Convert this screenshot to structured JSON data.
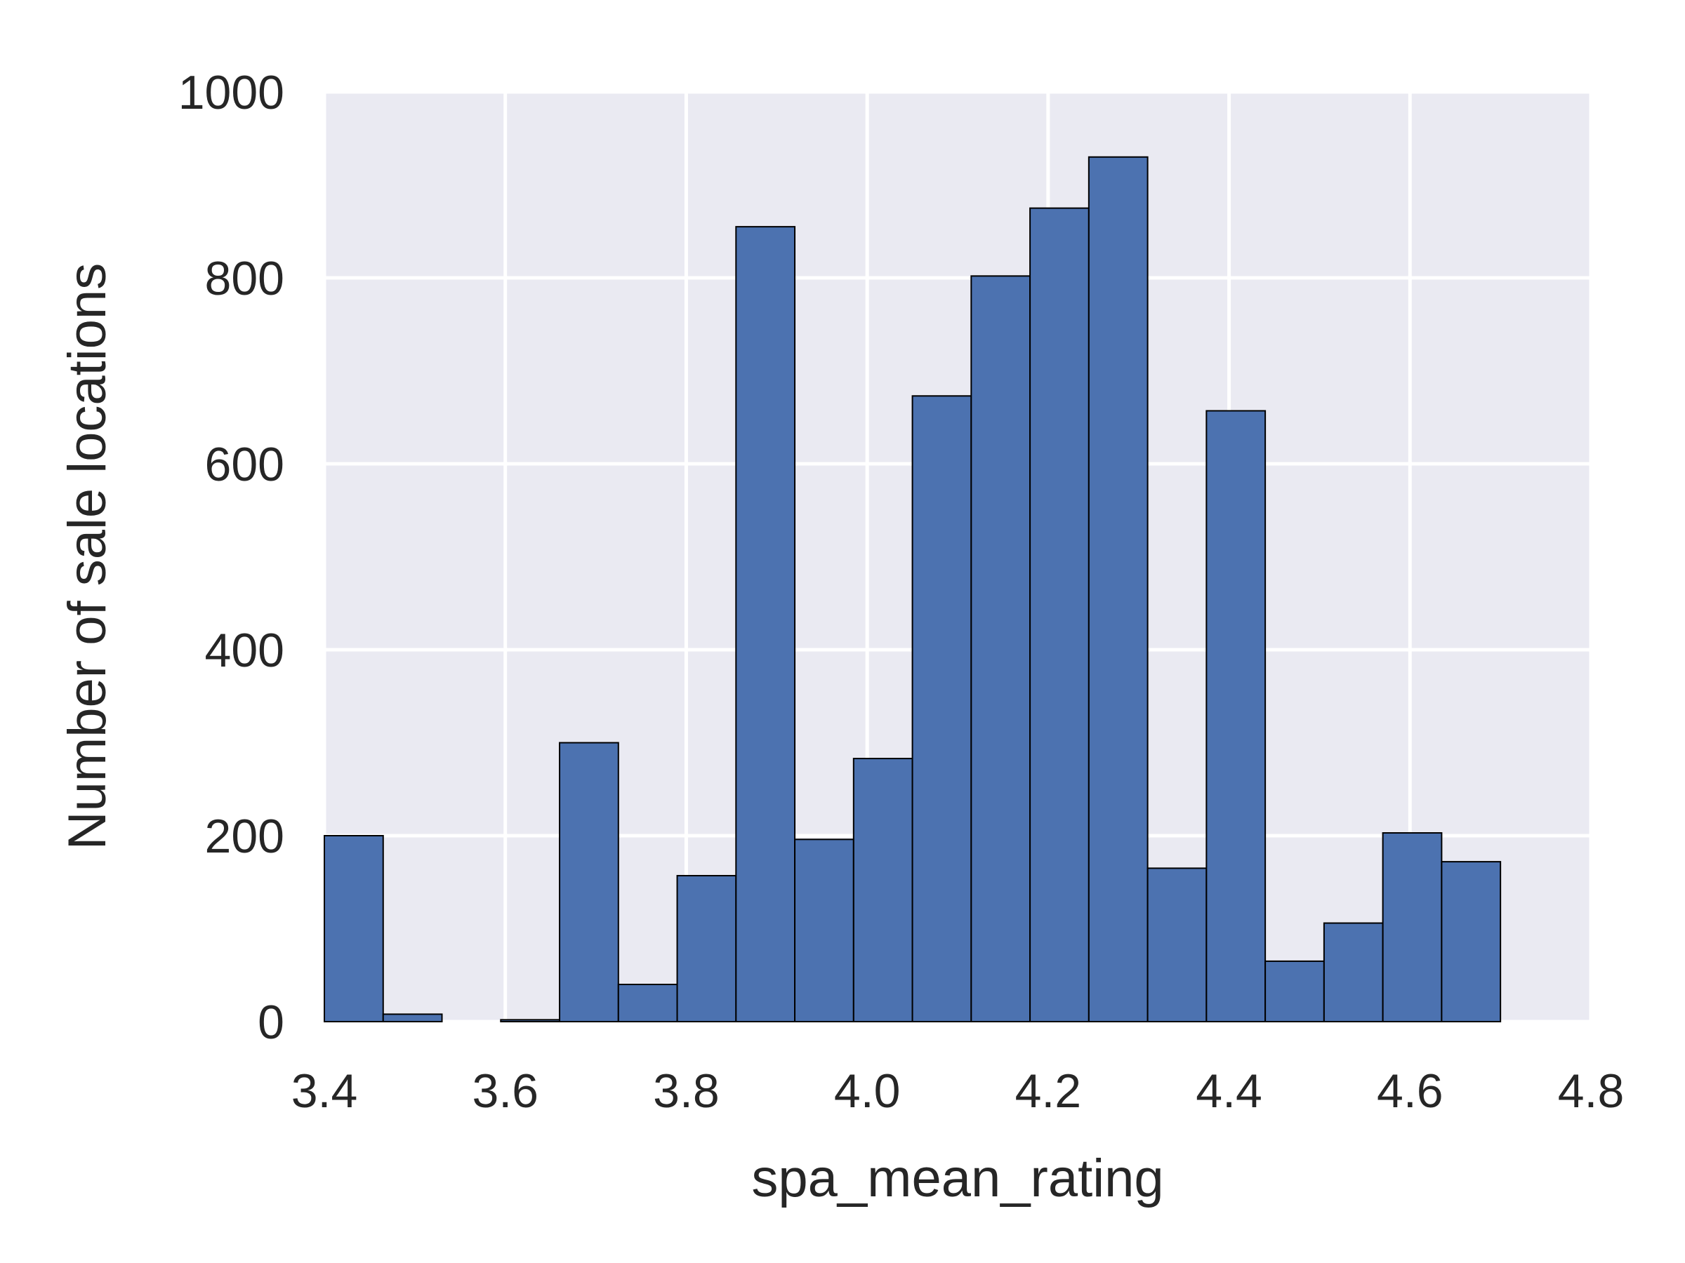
{
  "chart_data": {
    "type": "bar",
    "xlabel": "spa_mean_rating",
    "ylabel": "Number of sale locations",
    "xlim": [
      3.4,
      4.8
    ],
    "ylim": [
      0,
      1000
    ],
    "xticks": [
      "3.4",
      "3.6",
      "3.8",
      "4.0",
      "4.2",
      "4.4",
      "4.6",
      "4.8"
    ],
    "yticks": [
      "0",
      "200",
      "400",
      "600",
      "800",
      "1000"
    ],
    "grid": true,
    "bin_edges": [
      3.4,
      3.465,
      3.53,
      3.595,
      3.66,
      3.725,
      3.79,
      3.855,
      3.92,
      3.985,
      4.05,
      4.115,
      4.18,
      4.245,
      4.31,
      4.375,
      4.44,
      4.505,
      4.57,
      4.635,
      4.7
    ],
    "values": [
      200,
      8,
      0,
      2,
      300,
      40,
      157,
      855,
      196,
      283,
      673,
      802,
      875,
      930,
      165,
      657,
      65,
      106,
      203,
      172
    ],
    "colors": {
      "bar": "#4c72b0",
      "plot_background": "#eaeaf2",
      "grid": "#ffffff",
      "text": "#262626"
    }
  }
}
